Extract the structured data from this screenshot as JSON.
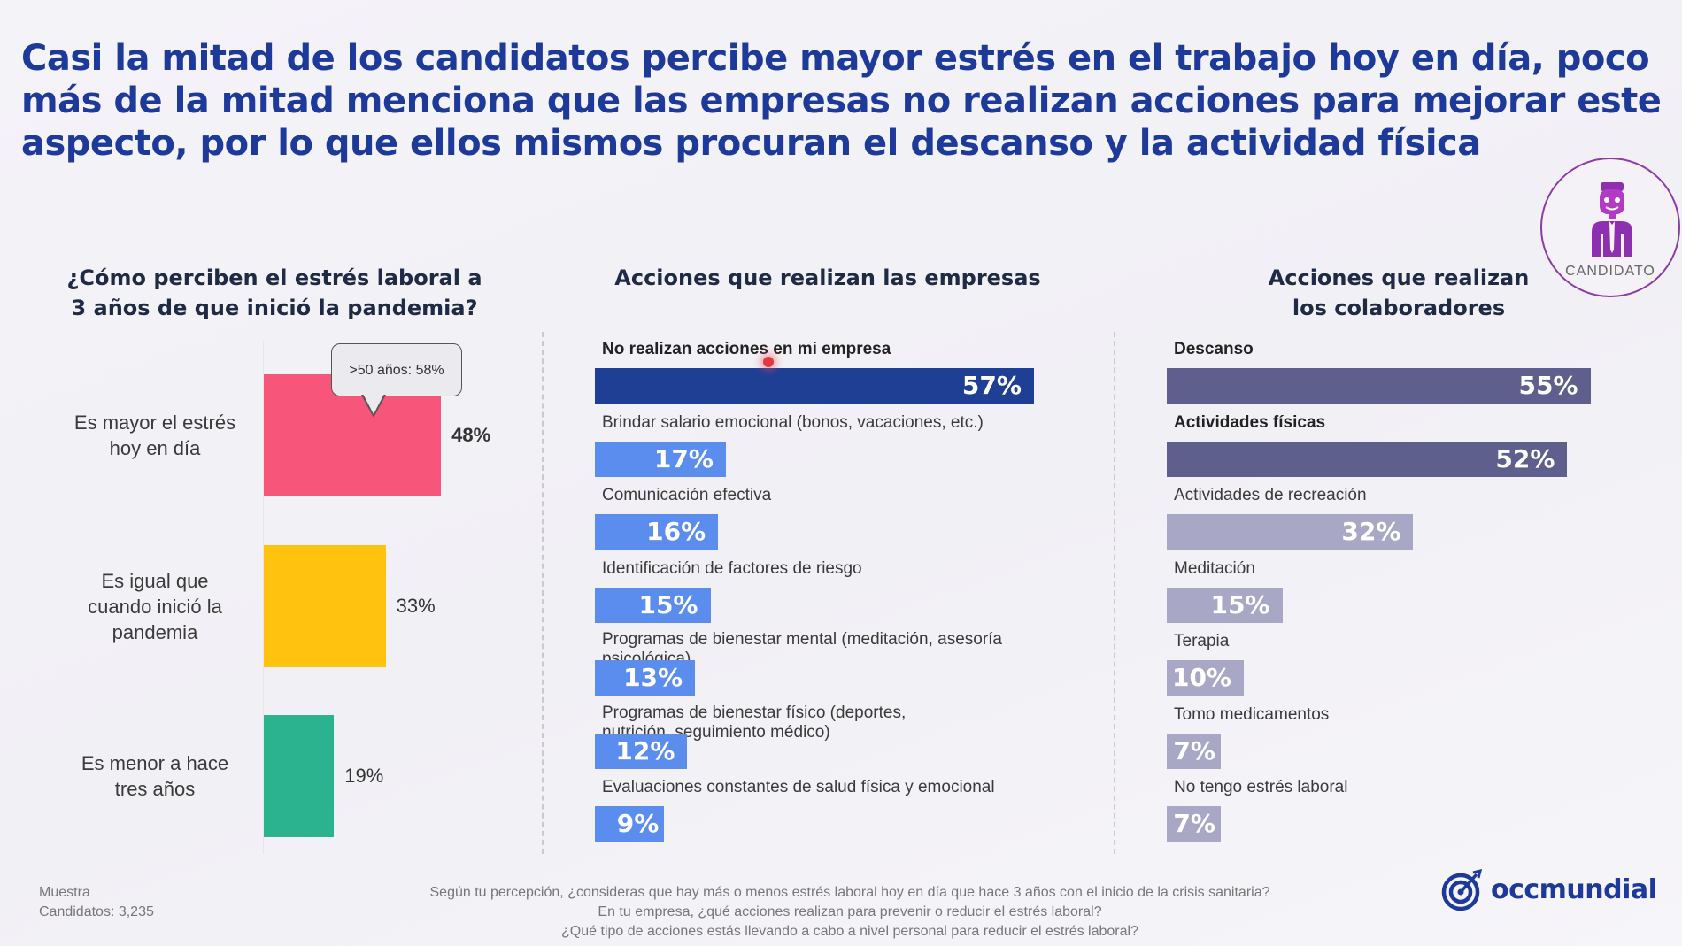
{
  "headline": {
    "lines": [
      "Casi la mitad de los candidatos percibe mayor estrés en el trabajo hoy en día, poco",
      "más de la mitad menciona que las empresas no realizan acciones para mejorar este",
      "aspecto, por lo que ellos mismos procuran el descanso y la actividad física"
    ]
  },
  "badge": {
    "label": "CANDIDATO",
    "icon": "candidate-person-icon",
    "color": "#8d3aa8"
  },
  "chart_data": [
    {
      "type": "bar",
      "orientation": "horizontal",
      "title": "¿Cómo perciben el estrés laboral a 3 años de que inició la pandemia?",
      "title_lines": [
        "¿Cómo perciben el estrés laboral a",
        "3 años de que inició la pandemia?"
      ],
      "categories": [
        [
          "Es mayor el estrés",
          "hoy en día"
        ],
        [
          "Es igual que",
          "cuando inició la",
          "pandemia"
        ],
        [
          "Es menor a hace",
          "tres años"
        ]
      ],
      "values": [
        48,
        33,
        19
      ],
      "value_labels": [
        "48%",
        "33%",
        "19%"
      ],
      "colors": [
        "#f7567a",
        "#ffc20e",
        "#2bb38f"
      ],
      "annotation": {
        "text": ">50 años: 58%",
        "category_index": 0
      },
      "xlim": [
        0,
        100
      ],
      "grid": false
    },
    {
      "type": "bar",
      "orientation": "horizontal",
      "title": "Acciones que realizan las empresas",
      "title_lines": [
        "Acciones que realizan las empresas"
      ],
      "categories": [
        "No realizan acciones en mi empresa",
        "Brindar salario emocional (bonos, vacaciones, etc.)",
        "Comunicación efectiva",
        "Identificación de factores de riesgo",
        "Programas de bienestar mental (meditación, asesoría psicológica)",
        "Programas de bienestar físico (deportes, nutrición, seguimiento médico)",
        "Evaluaciones constantes de salud física y emocional"
      ],
      "values": [
        57,
        17,
        16,
        15,
        13,
        12,
        9
      ],
      "value_labels": [
        "57%",
        "17%",
        "16%",
        "15%",
        "13%",
        "12%",
        "9%"
      ],
      "colors": [
        "#1f3f94",
        "#5b8def",
        "#5b8def",
        "#5b8def",
        "#5b8def",
        "#5b8def",
        "#5b8def"
      ],
      "xlim": [
        0,
        100
      ],
      "grid": false
    },
    {
      "type": "bar",
      "orientation": "horizontal",
      "title": "Acciones que realizan los colaboradores",
      "title_lines": [
        "Acciones que realizan",
        "los colaboradores"
      ],
      "categories": [
        "Descanso",
        "Actividades físicas",
        "Actividades de recreación",
        "Meditación",
        "Terapia",
        "Tomo medicamentos",
        "No tengo estrés laboral"
      ],
      "values": [
        55,
        52,
        32,
        15,
        10,
        7,
        7
      ],
      "value_labels": [
        "55%",
        "52%",
        "32%",
        "15%",
        "10%",
        "7%",
        "7%"
      ],
      "colors": [
        "#5e5f8c",
        "#5e5f8c",
        "#a8a8c6",
        "#a8a8c6",
        "#a8a8c6",
        "#a8a8c6",
        "#a8a8c6"
      ],
      "xlim": [
        0,
        100
      ],
      "grid": false
    }
  ],
  "footer": {
    "sample_label": "Muestra",
    "sample_value": "Candidatos: 3,235",
    "questions": [
      "Según tu percepción, ¿consideras que hay más o menos estrés laboral hoy en día que hace 3 años con el inicio de la crisis sanitaria?",
      "En tu empresa, ¿qué acciones realizan para prevenir o reducir el estrés laboral?",
      "¿Qué tipo de acciones estás llevando a cabo a nivel personal para reducir el estrés laboral?"
    ],
    "logo_text": "occmundial",
    "logo_icon": "target-arrow-icon",
    "brand_color": "#1d3a9b"
  }
}
